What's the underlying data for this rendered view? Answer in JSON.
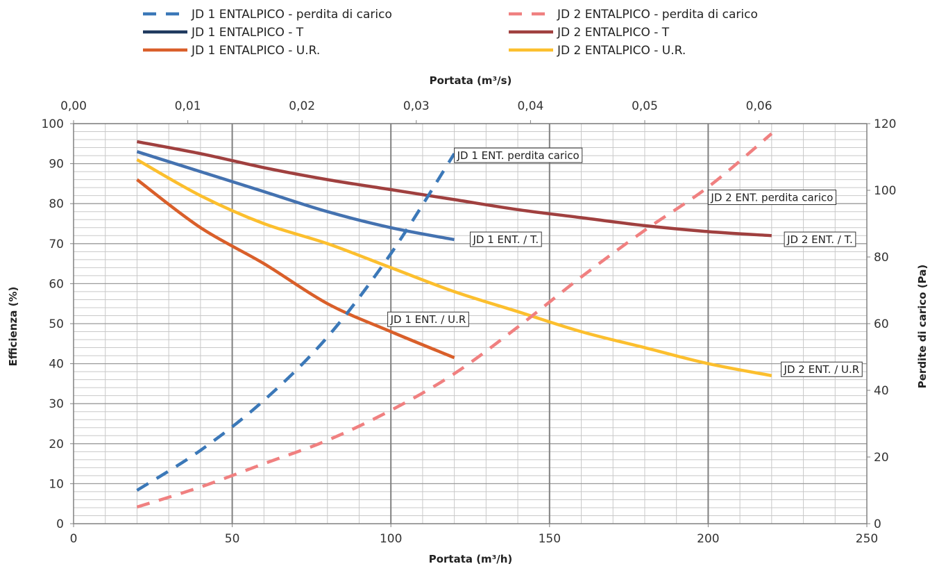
{
  "chart_data": {
    "type": "line",
    "title": "",
    "xlabel": "Portata (m³/h)",
    "x2label": "Portata (m³/s)",
    "ylabel": "Efficienza (%)",
    "y2label": "Perdite di carico (Pa)",
    "xlim": [
      0,
      250
    ],
    "x2lim": [
      0,
      0.06944
    ],
    "ylim": [
      0,
      100
    ],
    "y2lim": [
      0,
      120
    ],
    "xticks": [
      0,
      50,
      100,
      150,
      200,
      250
    ],
    "xtick_labels": [
      "0",
      "50",
      "100",
      "150",
      "200",
      "250"
    ],
    "x2ticks": [
      0.0,
      0.01,
      0.02,
      0.03,
      0.04,
      0.05,
      0.06
    ],
    "x2tick_labels": [
      "0,00",
      "0,01",
      "0,02",
      "0,03",
      "0,04",
      "0,05",
      "0,06"
    ],
    "yticks": [
      0,
      10,
      20,
      30,
      40,
      50,
      60,
      70,
      80,
      90,
      100
    ],
    "ytick_labels": [
      "0",
      "10",
      "20",
      "30",
      "40",
      "50",
      "60",
      "70",
      "80",
      "90",
      "100"
    ],
    "y2ticks": [
      0,
      20,
      40,
      60,
      80,
      100,
      120
    ],
    "y2tick_labels": [
      "0",
      "20",
      "40",
      "60",
      "80",
      "100",
      "120"
    ],
    "grid": true,
    "legend_position": "top",
    "series": [
      {
        "name": "JD 1 ENTALPICO - perdita di carico",
        "color": "#3b78b8",
        "dash": true,
        "axis": "right",
        "x": [
          20,
          40,
          60,
          80,
          100,
          120
        ],
        "y": [
          10,
          22,
          37,
          56,
          81,
          111
        ]
      },
      {
        "name": "JD 2 ENTALPICO - perdita di carico",
        "color": "#f08080",
        "dash": true,
        "axis": "right",
        "x": [
          20,
          40,
          60,
          80,
          100,
          120,
          140,
          160,
          180,
          200,
          220
        ],
        "y": [
          5,
          11,
          18,
          25,
          34,
          45,
          59,
          74,
          88,
          101,
          117
        ]
      },
      {
        "name": "JD 1 ENTALPICO - T",
        "color": "#4472b0",
        "dash": false,
        "axis": "left",
        "x": [
          20,
          40,
          60,
          80,
          100,
          120
        ],
        "y": [
          93,
          88,
          83,
          78,
          74,
          71
        ]
      },
      {
        "name": "JD 2 ENTALPICO - T",
        "color": "#a0403f",
        "dash": false,
        "axis": "left",
        "x": [
          20,
          40,
          60,
          80,
          100,
          120,
          140,
          160,
          180,
          200,
          220
        ],
        "y": [
          95.5,
          92.5,
          89,
          86,
          83.5,
          81,
          78.5,
          76.5,
          74.5,
          73,
          72
        ]
      },
      {
        "name": "JD 1 ENTALPICO - U.R.",
        "color": "#d95f2a",
        "dash": false,
        "axis": "left",
        "x": [
          20,
          40,
          60,
          80,
          100,
          120
        ],
        "y": [
          86,
          74,
          65,
          55,
          48,
          41.5
        ]
      },
      {
        "name": "JD 2 ENTALPICO - U.R.",
        "color": "#fcbf2e",
        "dash": false,
        "axis": "left",
        "x": [
          20,
          40,
          60,
          80,
          100,
          120,
          140,
          160,
          180,
          200,
          220
        ],
        "y": [
          91,
          82,
          75,
          70,
          64,
          58,
          53,
          48,
          44,
          40,
          37
        ]
      }
    ],
    "legend_colors": [
      "#3b78b8",
      "#f08080",
      "#1f3a5f",
      "#a0403f",
      "#d95f2a",
      "#fcbf2e"
    ],
    "annotations": [
      {
        "text": "JD 1 ENT. perdita carico",
        "x": 120,
        "y": 92
      },
      {
        "text": "JD 2 ENT. perdita carico",
        "x": 200,
        "y": 81.5
      },
      {
        "text": "JD 1 ENT. / T.",
        "x": 125,
        "y": 71
      },
      {
        "text": "JD 2 ENT. / T.",
        "x": 224,
        "y": 71
      },
      {
        "text": "JD 1 ENT. / U.R",
        "x": 99,
        "y": 51
      },
      {
        "text": "JD 2 ENT. / U.R",
        "x": 223,
        "y": 38.5
      }
    ]
  }
}
